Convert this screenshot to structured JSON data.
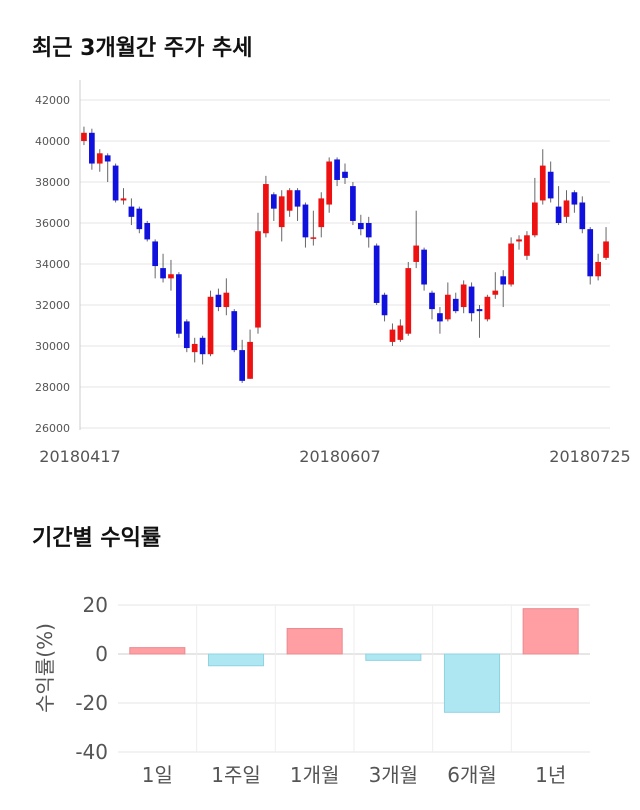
{
  "sections": {
    "price_title": "최근 3개월간 주가 추세",
    "returns_title": "기간별 수익률"
  },
  "chart_data": [
    {
      "type": "candlestick",
      "title": "최근 3개월간 주가 추세",
      "y_ticks": [
        "42000",
        "40000",
        "38000",
        "36000",
        "34000",
        "32000",
        "30000",
        "28000",
        "26000"
      ],
      "ylim": [
        26000,
        42000
      ],
      "x_ticks": [
        "20180417",
        "20180607",
        "20180725"
      ],
      "grid": true,
      "colors": {
        "up": "#ee1111",
        "down": "#1111dd",
        "grid": "#e6e6e6"
      },
      "candles": [
        [
          40000,
          40400,
          40700,
          39800
        ],
        [
          40400,
          38900,
          40600,
          38600
        ],
        [
          38900,
          39400,
          39600,
          38500
        ],
        [
          39300,
          39000,
          39400,
          38000
        ],
        [
          38800,
          37100,
          38900,
          37000
        ],
        [
          37100,
          37200,
          37700,
          36900
        ],
        [
          36800,
          36300,
          37200,
          35900
        ],
        [
          36700,
          35700,
          36800,
          35500
        ],
        [
          36000,
          35200,
          36100,
          35100
        ],
        [
          35100,
          33900,
          35200,
          33300
        ],
        [
          33800,
          33300,
          34500,
          33100
        ],
        [
          33300,
          33500,
          34200,
          32700
        ],
        [
          33500,
          30600,
          33600,
          30400
        ],
        [
          31200,
          29900,
          31300,
          29700
        ],
        [
          29700,
          30100,
          30400,
          29200
        ],
        [
          30400,
          29600,
          30500,
          29100
        ],
        [
          29600,
          32400,
          32700,
          29500
        ],
        [
          32500,
          31900,
          32800,
          31700
        ],
        [
          31900,
          32600,
          33300,
          31500
        ],
        [
          31700,
          29800,
          31800,
          29700
        ],
        [
          29800,
          28300,
          30300,
          28200
        ],
        [
          28400,
          30200,
          30800,
          28400
        ],
        [
          30900,
          35600,
          36500,
          30600
        ],
        [
          35500,
          37900,
          38300,
          35300
        ],
        [
          37400,
          36700,
          37500,
          36100
        ],
        [
          35800,
          37300,
          37600,
          35100
        ],
        [
          36600,
          37600,
          37700,
          36300
        ],
        [
          37600,
          36800,
          37700,
          36100
        ],
        [
          36900,
          35300,
          37000,
          34800
        ],
        [
          35300,
          35300,
          36600,
          34900
        ],
        [
          35800,
          37200,
          37500,
          35300
        ],
        [
          36900,
          39000,
          39200,
          36500
        ],
        [
          39100,
          38100,
          39200,
          37800
        ],
        [
          38500,
          38200,
          38900,
          37900
        ],
        [
          37800,
          36100,
          38000,
          35900
        ],
        [
          36000,
          35700,
          36400,
          35400
        ],
        [
          36000,
          35300,
          36300,
          34800
        ],
        [
          34900,
          32100,
          35000,
          32000
        ],
        [
          32500,
          31500,
          32600,
          31200
        ],
        [
          30200,
          30800,
          31100,
          30000
        ],
        [
          30300,
          31000,
          31300,
          30200
        ],
        [
          30600,
          33800,
          34100,
          30500
        ],
        [
          34100,
          34900,
          36600,
          33800
        ],
        [
          34700,
          33000,
          34800,
          32700
        ],
        [
          32600,
          31800,
          32700,
          31300
        ],
        [
          31600,
          31200,
          31900,
          30600
        ],
        [
          31300,
          32500,
          33100,
          31200
        ],
        [
          32300,
          31700,
          32600,
          31600
        ],
        [
          31900,
          33000,
          33200,
          31600
        ],
        [
          32900,
          31600,
          33100,
          31200
        ],
        [
          31800,
          31700,
          32000,
          30400
        ],
        [
          31300,
          32400,
          32500,
          31200
        ],
        [
          32500,
          32700,
          33600,
          32300
        ],
        [
          33400,
          33000,
          33700,
          31900
        ],
        [
          33000,
          35000,
          35300,
          32900
        ],
        [
          35100,
          35200,
          35400,
          34700
        ],
        [
          34400,
          35400,
          35600,
          34200
        ],
        [
          35400,
          37000,
          38200,
          35300
        ],
        [
          37100,
          38800,
          39600,
          36900
        ],
        [
          38500,
          37200,
          39000,
          37000
        ],
        [
          36800,
          36000,
          37800,
          35900
        ],
        [
          36300,
          37100,
          37600,
          36000
        ],
        [
          37500,
          36900,
          37600,
          36500
        ],
        [
          37000,
          35700,
          37300,
          35500
        ],
        [
          35700,
          33400,
          35800,
          33000
        ],
        [
          33400,
          34100,
          34500,
          33200
        ],
        [
          34300,
          35100,
          35800,
          34200
        ]
      ]
    },
    {
      "type": "bar",
      "title": "기간별 수익률",
      "categories": [
        "1일",
        "1주일",
        "1개월",
        "3개월",
        "6개월",
        "1년"
      ],
      "values": [
        2.6,
        -4.8,
        10.4,
        -2.6,
        -23.8,
        18.5
      ],
      "ylabel": "수익률(%)",
      "y_ticks": [
        "20",
        "0",
        "-20",
        "-40"
      ],
      "ylim": [
        -40,
        20
      ],
      "colors": {
        "positive": "#ff9fa3",
        "negative": "#aee7f2"
      }
    }
  ]
}
